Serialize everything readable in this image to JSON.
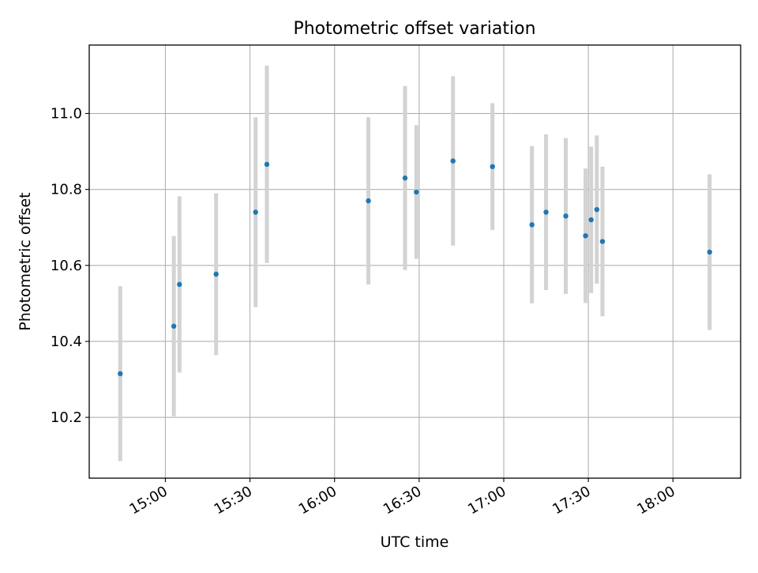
{
  "chart_data": {
    "type": "scatter",
    "title": "Photometric offset variation",
    "xlabel": "UTC time",
    "ylabel": "Photometric offset",
    "grid": true,
    "legend": "none",
    "xlim": [
      "14:33",
      "18:24"
    ],
    "ylim": [
      10.04,
      11.18
    ],
    "x_ticks": [
      "15:00",
      "15:30",
      "16:00",
      "16:30",
      "17:00",
      "17:30",
      "18:00"
    ],
    "y_ticks": [
      10.2,
      10.4,
      10.6,
      10.8,
      11.0
    ],
    "y_tick_labels": [
      "10.2",
      "10.4",
      "10.6",
      "10.8",
      "11.0"
    ],
    "colors": {
      "point": "#1f77b4",
      "error_bar": "#d3d3d3",
      "grid": "#b0b0b0"
    },
    "points": [
      {
        "x": "14:44",
        "y": 10.315,
        "err": 0.23
      },
      {
        "x": "15:03",
        "y": 10.44,
        "err": 0.237
      },
      {
        "x": "15:05",
        "y": 10.55,
        "err": 0.232
      },
      {
        "x": "15:18",
        "y": 10.577,
        "err": 0.213
      },
      {
        "x": "15:32",
        "y": 10.74,
        "err": 0.25
      },
      {
        "x": "15:36",
        "y": 10.866,
        "err": 0.26
      },
      {
        "x": "16:12",
        "y": 10.77,
        "err": 0.22
      },
      {
        "x": "16:25",
        "y": 10.83,
        "err": 0.242
      },
      {
        "x": "16:29",
        "y": 10.793,
        "err": 0.176
      },
      {
        "x": "16:42",
        "y": 10.875,
        "err": 0.223
      },
      {
        "x": "16:56",
        "y": 10.86,
        "err": 0.167
      },
      {
        "x": "17:10",
        "y": 10.707,
        "err": 0.207
      },
      {
        "x": "17:15",
        "y": 10.74,
        "err": 0.205
      },
      {
        "x": "17:22",
        "y": 10.73,
        "err": 0.205
      },
      {
        "x": "17:29",
        "y": 10.678,
        "err": 0.177
      },
      {
        "x": "17:31",
        "y": 10.72,
        "err": 0.193
      },
      {
        "x": "17:33",
        "y": 10.747,
        "err": 0.195
      },
      {
        "x": "17:35",
        "y": 10.663,
        "err": 0.197
      },
      {
        "x": "18:13",
        "y": 10.635,
        "err": 0.205
      }
    ]
  }
}
